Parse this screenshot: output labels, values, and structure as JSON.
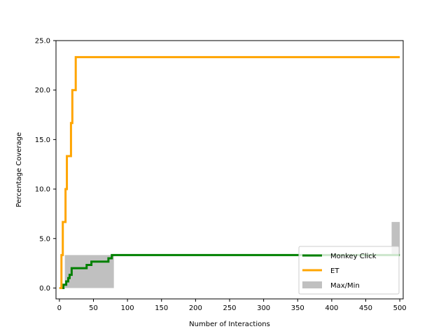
{
  "chart_data": {
    "type": "line",
    "title": "",
    "xlabel": "Number of Interactions",
    "ylabel": "Percentage Coverage",
    "xlim": [
      -5,
      505
    ],
    "ylim": [
      -1.1,
      25.0
    ],
    "xticks": [
      0,
      50,
      100,
      150,
      200,
      250,
      300,
      350,
      400,
      450,
      500
    ],
    "xtick_labels": [
      "0",
      "50",
      "100",
      "150",
      "200",
      "250",
      "300",
      "350",
      "400",
      "450",
      "500"
    ],
    "yticks": [
      0,
      5,
      10,
      15,
      20,
      25
    ],
    "ytick_labels": [
      "0.0",
      "5.0",
      "10.0",
      "15.0",
      "20.0",
      "25.0"
    ],
    "grid": false,
    "legend_position": "bottom-right",
    "series": [
      {
        "name": "Monkey Click",
        "color": "#008000",
        "x": [
          0,
          6,
          6,
          10,
          10,
          13,
          13,
          15,
          15,
          18,
          18,
          25,
          25,
          40,
          40,
          47,
          47,
          72,
          72,
          77,
          77,
          500
        ],
        "y": [
          0,
          0,
          0.33,
          0.33,
          0.67,
          0.67,
          1.0,
          1.0,
          1.33,
          1.33,
          2.0,
          2.0,
          2.0,
          2.0,
          2.33,
          2.33,
          2.67,
          2.67,
          3.0,
          3.0,
          3.33,
          3.33
        ]
      },
      {
        "name": "ET",
        "color": "#FFA500",
        "x": [
          0,
          3,
          3,
          5,
          5,
          9,
          9,
          11,
          11,
          17,
          17,
          19,
          19,
          24,
          24,
          500
        ],
        "y": [
          0,
          0,
          3.33,
          3.33,
          6.67,
          6.67,
          10.0,
          10.0,
          13.33,
          13.33,
          16.67,
          16.67,
          20.0,
          20.0,
          23.33,
          23.33
        ]
      }
    ],
    "band": {
      "name": "Max/Min",
      "color": "#C0C0C0",
      "x": [
        0,
        5,
        8,
        8,
        80,
        80,
        488,
        488,
        500
      ],
      "min": [
        0,
        0,
        0,
        0,
        0,
        3.33,
        3.33,
        3.33,
        3.33
      ],
      "max": [
        0,
        0,
        0,
        3.33,
        3.33,
        3.33,
        3.33,
        6.67,
        6.67
      ]
    }
  }
}
